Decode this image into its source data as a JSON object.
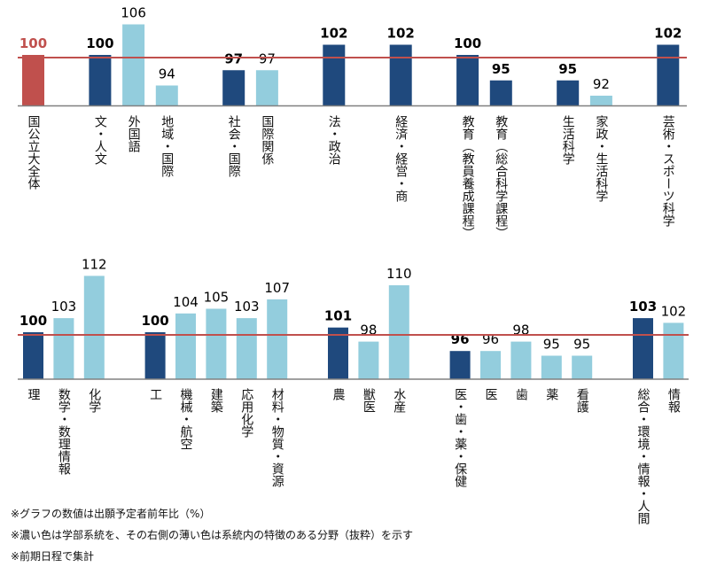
{
  "chart_data": [
    {
      "type": "bar",
      "title": "",
      "xlabel": "",
      "ylabel": "",
      "ylim": [
        90,
        110
      ],
      "reference_line": 100,
      "grid": false,
      "legend": "none",
      "categories": [
        "国公立大全体",
        "文・人文",
        "外国語",
        "地域・国際",
        "社会・国際",
        "国際関係",
        "法・政治",
        "経済・経営・商",
        "教育（教員養成課程）",
        "教育（総合科学課程）",
        "生活科学",
        "家政・生活科学",
        "芸術・スポーツ科学"
      ],
      "values": [
        100,
        100,
        106,
        94,
        97,
        97,
        102,
        102,
        100,
        95,
        95,
        92,
        102
      ],
      "kinds": [
        "total",
        "faculty",
        "field",
        "field",
        "faculty",
        "field",
        "faculty",
        "faculty",
        "faculty",
        "faculty",
        "faculty",
        "field",
        "faculty"
      ],
      "slots": [
        0,
        2,
        3,
        4,
        6,
        7,
        9,
        11,
        13,
        14,
        16,
        17,
        19
      ]
    },
    {
      "type": "bar",
      "title": "",
      "xlabel": "",
      "ylabel": "",
      "ylim": [
        90,
        112
      ],
      "reference_line": 100,
      "grid": false,
      "legend": "none",
      "categories": [
        "理",
        "数学・数理情報",
        "化学",
        "工",
        "機械・航空",
        "建築",
        "応用化学",
        "材料・物質・資源",
        "農",
        "獣医",
        "水産",
        "医・歯・薬・保健",
        "医",
        "歯",
        "薬",
        "看護",
        "総合・環境・情報・人間",
        "情報"
      ],
      "values": [
        100,
        103,
        112,
        100,
        104,
        105,
        103,
        107,
        101,
        98,
        110,
        96,
        96,
        98,
        95,
        95,
        103,
        102
      ],
      "kinds": [
        "faculty",
        "field",
        "field",
        "faculty",
        "field",
        "field",
        "field",
        "field",
        "faculty",
        "field",
        "field",
        "faculty",
        "field",
        "field",
        "field",
        "field",
        "faculty",
        "field"
      ],
      "slots": [
        0,
        1,
        2,
        4,
        5,
        6,
        7,
        8,
        10,
        11,
        12,
        14,
        15,
        16,
        17,
        18,
        20,
        21
      ]
    }
  ],
  "colors": {
    "total": "#C0504D",
    "faculty": "#1F497D",
    "field": "#93CDDD",
    "reference_line": "#C0504D",
    "axis": "#808080"
  },
  "notes": [
    "※グラフの数値は出願予定者前年比（%）",
    "※濃い色は学部系統を、その右側の薄い色は系統内の特徴のある分野（抜粋）を示す",
    "※前期日程で集計"
  ]
}
